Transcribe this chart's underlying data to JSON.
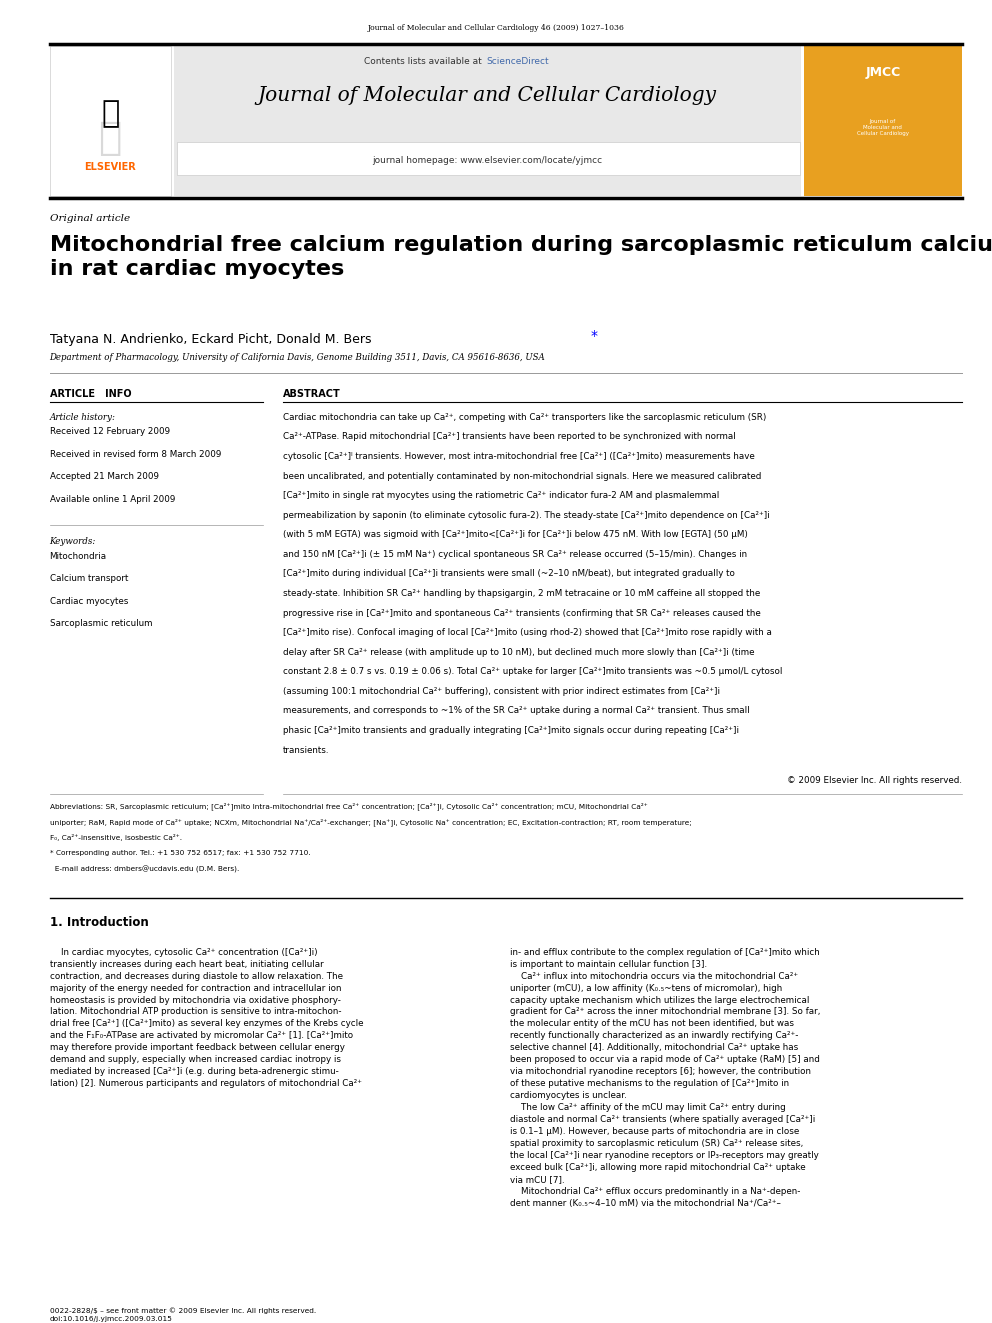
{
  "page_width": 9.92,
  "page_height": 13.23,
  "bg_color": "#ffffff",
  "top_journal_ref": "Journal of Molecular and Cellular Cardiology 46 (2009) 1027–1036",
  "header_bg": "#e8e8e8",
  "journal_title": "Journal of Molecular and Cellular Cardiology",
  "contents_text": "Contents lists available at",
  "sciencedirect_text": "ScienceDirect",
  "sciencedirect_color": "#4169aa",
  "homepage_text": "journal homepage: www.elsevier.com/locate/yjmcc",
  "elsevier_color": "#FF6600",
  "article_type": "Original article",
  "paper_title": "Mitochondrial free calcium regulation during sarcoplasmic reticulum calcium release\nin rat cardiac myocytes",
  "authors": "Tatyana N. Andrienko, Eckard Picht, Donald M. Bers",
  "affiliation": "Department of Pharmacology, University of California Davis, Genome Building 3511, Davis, CA 95616-8636, USA",
  "article_info_title": "ARTICLE   INFO",
  "abstract_title": "ABSTRACT",
  "article_history_label": "Article history:",
  "received1": "Received 12 February 2009",
  "received2": "Received in revised form 8 March 2009",
  "accepted": "Accepted 21 March 2009",
  "available": "Available online 1 April 2009",
  "keywords_label": "Keywords:",
  "keywords": [
    "Mitochondria",
    "Calcium transport",
    "Cardiac myocytes",
    "Sarcoplasmic reticulum"
  ],
  "copyright": "© 2009 Elsevier Inc. All rights reserved.",
  "section1_title": "1. Introduction",
  "issn_line1": "0022-2828/$ – see front matter © 2009 Elsevier Inc. All rights reserved.",
  "issn_line2": "doi:10.1016/j.yjmcc.2009.03.015"
}
